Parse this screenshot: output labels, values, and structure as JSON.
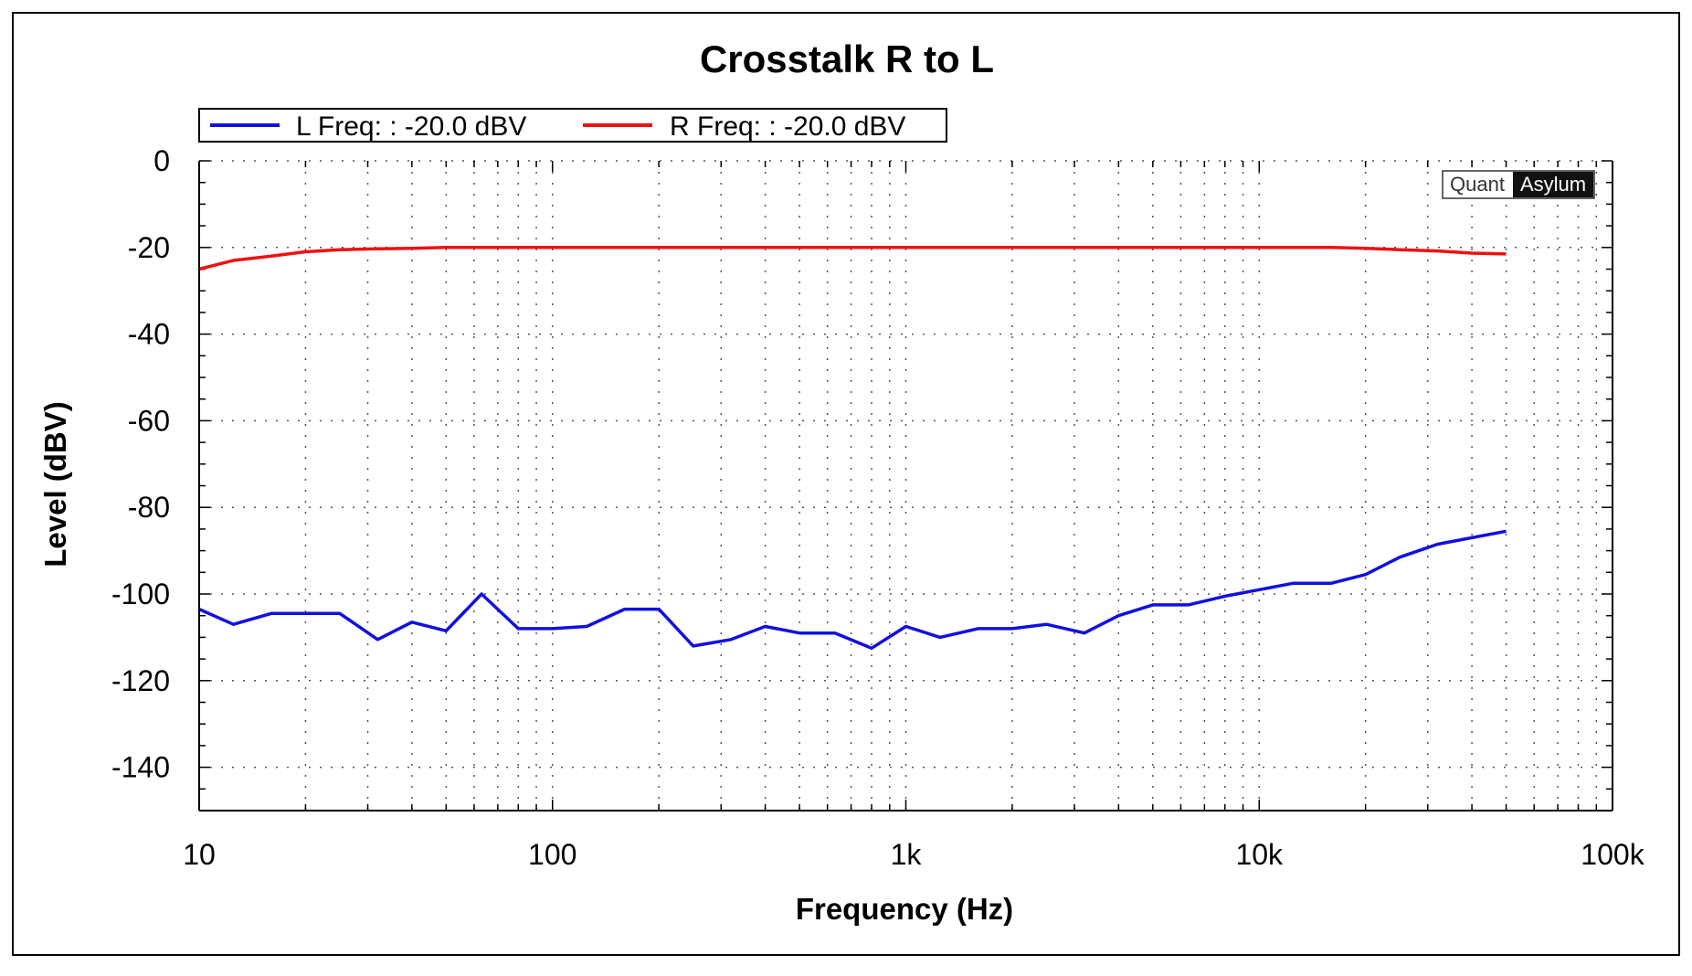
{
  "chart_data": {
    "type": "line",
    "title": "Crosstalk R to L",
    "xlabel": "Frequency (Hz)",
    "ylabel": "Level (dBV)",
    "x_scale": "log",
    "xlim": [
      10,
      100000
    ],
    "ylim": [
      -150,
      0
    ],
    "x_ticks": [
      {
        "value": 10,
        "label": "10"
      },
      {
        "value": 100,
        "label": "100"
      },
      {
        "value": 1000,
        "label": "1k"
      },
      {
        "value": 10000,
        "label": "10k"
      },
      {
        "value": 100000,
        "label": "100k"
      }
    ],
    "y_ticks": [
      0,
      -20,
      -40,
      -60,
      -80,
      -100,
      -120,
      -140
    ],
    "grid": "dotted",
    "legend_position": "top-left",
    "watermark": {
      "part1": "Quant",
      "part2": "Asylum"
    },
    "colors": {
      "frame": "#000000",
      "grid": "#555555"
    },
    "series": [
      {
        "name": "L Freq: : -20.0 dBV",
        "color": "#1010e0",
        "points": [
          [
            10,
            -103.5
          ],
          [
            12.5,
            -107
          ],
          [
            16,
            -104.5
          ],
          [
            20,
            -104.5
          ],
          [
            25,
            -104.5
          ],
          [
            32,
            -110.5
          ],
          [
            40,
            -106.5
          ],
          [
            50,
            -108.5
          ],
          [
            63,
            -100
          ],
          [
            80,
            -108
          ],
          [
            100,
            -108
          ],
          [
            125,
            -107.5
          ],
          [
            160,
            -103.5
          ],
          [
            200,
            -103.5
          ],
          [
            250,
            -112
          ],
          [
            320,
            -110.5
          ],
          [
            400,
            -107.5
          ],
          [
            500,
            -109
          ],
          [
            630,
            -109
          ],
          [
            800,
            -112.5
          ],
          [
            1000,
            -107.5
          ],
          [
            1250,
            -110
          ],
          [
            1600,
            -108
          ],
          [
            2000,
            -108
          ],
          [
            2500,
            -107
          ],
          [
            3200,
            -109
          ],
          [
            4000,
            -105
          ],
          [
            5000,
            -102.5
          ],
          [
            6300,
            -102.5
          ],
          [
            8000,
            -100.5
          ],
          [
            10000,
            -99
          ],
          [
            12500,
            -97.5
          ],
          [
            16000,
            -97.5
          ],
          [
            20000,
            -95.5
          ],
          [
            25000,
            -91.5
          ],
          [
            32000,
            -88.5
          ],
          [
            40000,
            -87
          ],
          [
            50000,
            -85.5
          ]
        ]
      },
      {
        "name": "R Freq: : -20.0 dBV",
        "color": "#ee1111",
        "points": [
          [
            10,
            -25
          ],
          [
            12.5,
            -23
          ],
          [
            16,
            -22
          ],
          [
            20,
            -21
          ],
          [
            25,
            -20.5
          ],
          [
            32,
            -20.3
          ],
          [
            40,
            -20.2
          ],
          [
            50,
            -20
          ],
          [
            63,
            -20
          ],
          [
            80,
            -20
          ],
          [
            100,
            -20
          ],
          [
            200,
            -20
          ],
          [
            500,
            -20
          ],
          [
            1000,
            -20
          ],
          [
            2000,
            -20
          ],
          [
            5000,
            -20
          ],
          [
            10000,
            -20
          ],
          [
            16000,
            -20
          ],
          [
            20000,
            -20.2
          ],
          [
            25000,
            -20.5
          ],
          [
            32000,
            -20.8
          ],
          [
            40000,
            -21.3
          ],
          [
            50000,
            -21.5
          ]
        ]
      }
    ]
  }
}
